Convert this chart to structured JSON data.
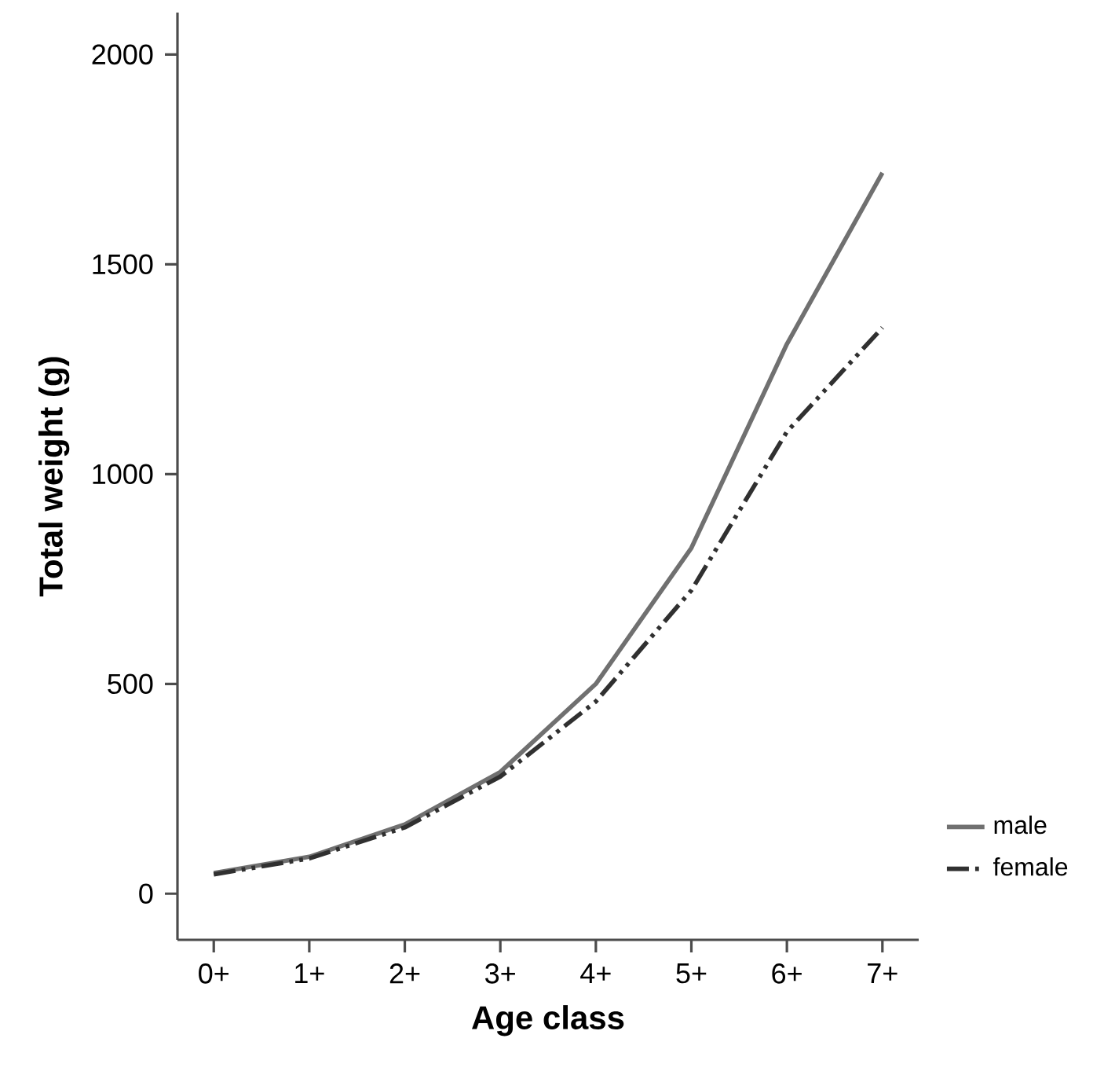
{
  "chart_data": {
    "type": "line",
    "xlabel": "Age class",
    "ylabel": "Total weight (g)",
    "categories": [
      "0+",
      "1+",
      "2+",
      "3+",
      "4+",
      "5+",
      "6+",
      "7+"
    ],
    "ylim": [
      -110,
      2100
    ],
    "yticks": [
      0,
      500,
      1000,
      1500,
      2000
    ],
    "grid": false,
    "legend": "bottom right",
    "marker": "none",
    "series": [
      {
        "name": "male",
        "color": "#707070",
        "line_style": "solid",
        "values": [
          49,
          88,
          165,
          290,
          500,
          824,
          1310,
          1718
        ]
      },
      {
        "name": "female",
        "color": "#303030",
        "line_style": "dashed",
        "values": [
          46,
          84,
          158,
          279,
          458,
          723,
          1101,
          1349
        ]
      }
    ]
  }
}
